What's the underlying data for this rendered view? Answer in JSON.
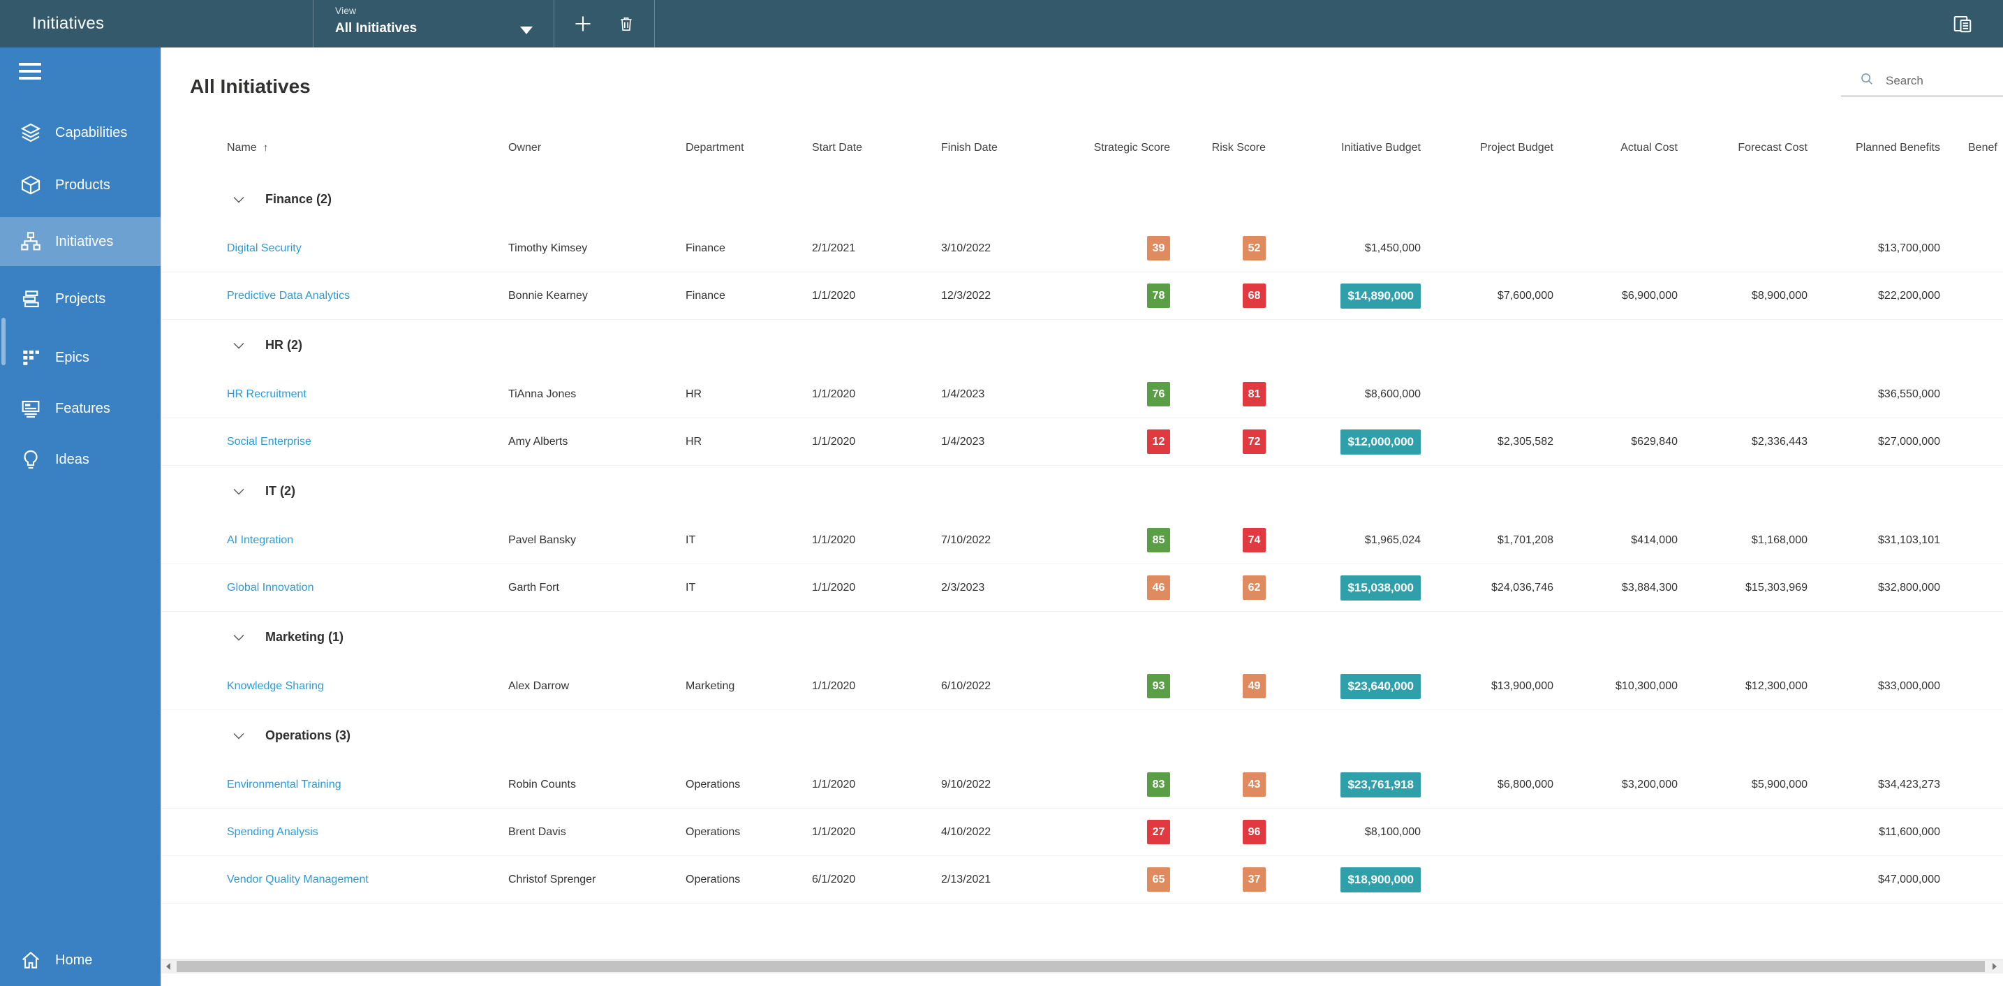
{
  "colors": {
    "topbar_bg": "#34596a",
    "sidebar_bg": "#3a81c3",
    "accent_link": "#2b9cd8",
    "score_green": "#5a9e45",
    "score_red": "#e03a40",
    "score_amber": "#e08b5f",
    "budget_badge": "#2f9faa"
  },
  "topbar": {
    "title": "Initiatives",
    "view_label": "View",
    "view_value": "All Initiatives",
    "actions": [
      {
        "icon": "plus-icon"
      },
      {
        "icon": "trash-icon"
      }
    ],
    "right_icon": "details-panel-icon"
  },
  "sidebar": {
    "menu_icon": "hamburger-icon",
    "items": [
      {
        "label": "Capabilities",
        "icon": "layers-icon",
        "selected": false
      },
      {
        "label": "Products",
        "icon": "box-icon",
        "selected": false
      },
      {
        "label": "Initiatives",
        "icon": "hierarchy-icon",
        "selected": true
      },
      {
        "label": "Projects",
        "icon": "stacked-bars-icon",
        "selected": false
      },
      {
        "label": "Epics",
        "icon": "grid-icon",
        "selected": false
      },
      {
        "label": "Features",
        "icon": "screen-icon",
        "selected": false
      },
      {
        "label": "Ideas",
        "icon": "lightbulb-icon",
        "selected": false
      }
    ],
    "footer_item": {
      "label": "Home",
      "icon": "home-icon"
    }
  },
  "main": {
    "heading": "All Initiatives",
    "search": {
      "placeholder": "Search",
      "icon": "magnifier-icon"
    }
  },
  "table": {
    "columns": [
      {
        "label": "Name",
        "sort": "asc"
      },
      {
        "label": "Owner"
      },
      {
        "label": "Department"
      },
      {
        "label": "Start Date"
      },
      {
        "label": "Finish Date"
      },
      {
        "label": "Strategic Score"
      },
      {
        "label": "Risk Score"
      },
      {
        "label": "Initiative Budget"
      },
      {
        "label": "Project Budget"
      },
      {
        "label": "Actual Cost"
      },
      {
        "label": "Forecast Cost"
      },
      {
        "label": "Planned Benefits"
      },
      {
        "label": "Benef"
      }
    ],
    "groups": [
      {
        "label": "Finance (2)",
        "department": "Finance",
        "count": 2,
        "rows": [
          {
            "name": "Digital Security",
            "owner": "Timothy Kimsey",
            "department": "Finance",
            "start_date": "2/1/2021",
            "finish_date": "3/10/2022",
            "strategic_score": {
              "value": "39",
              "color": "amber"
            },
            "risk_score": {
              "value": "52",
              "color": "amber"
            },
            "initiative_budget": {
              "value": "$1,450,000",
              "highlighted": false
            },
            "project_budget": "",
            "actual_cost": "",
            "forecast_cost": "",
            "planned_benefits": "$13,700,000"
          },
          {
            "name": "Predictive Data Analytics",
            "owner": "Bonnie Kearney",
            "department": "Finance",
            "start_date": "1/1/2020",
            "finish_date": "12/3/2022",
            "strategic_score": {
              "value": "78",
              "color": "green"
            },
            "risk_score": {
              "value": "68",
              "color": "red"
            },
            "initiative_budget": {
              "value": "$14,890,000",
              "highlighted": true
            },
            "project_budget": "$7,600,000",
            "actual_cost": "$6,900,000",
            "forecast_cost": "$8,900,000",
            "planned_benefits": "$22,200,000"
          }
        ]
      },
      {
        "label": "HR (2)",
        "department": "HR",
        "count": 2,
        "rows": [
          {
            "name": "HR Recruitment",
            "owner": "TiAnna Jones",
            "department": "HR",
            "start_date": "1/1/2020",
            "finish_date": "1/4/2023",
            "strategic_score": {
              "value": "76",
              "color": "green"
            },
            "risk_score": {
              "value": "81",
              "color": "red"
            },
            "initiative_budget": {
              "value": "$8,600,000",
              "highlighted": false
            },
            "project_budget": "",
            "actual_cost": "",
            "forecast_cost": "",
            "planned_benefits": "$36,550,000"
          },
          {
            "name": "Social Enterprise",
            "owner": "Amy Alberts",
            "department": "HR",
            "start_date": "1/1/2020",
            "finish_date": "1/4/2023",
            "strategic_score": {
              "value": "12",
              "color": "red"
            },
            "risk_score": {
              "value": "72",
              "color": "red"
            },
            "initiative_budget": {
              "value": "$12,000,000",
              "highlighted": true
            },
            "project_budget": "$2,305,582",
            "actual_cost": "$629,840",
            "forecast_cost": "$2,336,443",
            "planned_benefits": "$27,000,000"
          }
        ]
      },
      {
        "label": "IT (2)",
        "department": "IT",
        "count": 2,
        "rows": [
          {
            "name": "AI Integration",
            "owner": "Pavel Bansky",
            "department": "IT",
            "start_date": "1/1/2020",
            "finish_date": "7/10/2022",
            "strategic_score": {
              "value": "85",
              "color": "green"
            },
            "risk_score": {
              "value": "74",
              "color": "red"
            },
            "initiative_budget": {
              "value": "$1,965,024",
              "highlighted": false
            },
            "project_budget": "$1,701,208",
            "actual_cost": "$414,000",
            "forecast_cost": "$1,168,000",
            "planned_benefits": "$31,103,101"
          },
          {
            "name": "Global Innovation",
            "owner": "Garth Fort",
            "department": "IT",
            "start_date": "1/1/2020",
            "finish_date": "2/3/2023",
            "strategic_score": {
              "value": "46",
              "color": "amber"
            },
            "risk_score": {
              "value": "62",
              "color": "amber"
            },
            "initiative_budget": {
              "value": "$15,038,000",
              "highlighted": true
            },
            "project_budget": "$24,036,746",
            "actual_cost": "$3,884,300",
            "forecast_cost": "$15,303,969",
            "planned_benefits": "$32,800,000"
          }
        ]
      },
      {
        "label": "Marketing (1)",
        "department": "Marketing",
        "count": 1,
        "rows": [
          {
            "name": "Knowledge Sharing",
            "owner": "Alex Darrow",
            "department": "Marketing",
            "start_date": "1/1/2020",
            "finish_date": "6/10/2022",
            "strategic_score": {
              "value": "93",
              "color": "green"
            },
            "risk_score": {
              "value": "49",
              "color": "amber"
            },
            "initiative_budget": {
              "value": "$23,640,000",
              "highlighted": true
            },
            "project_budget": "$13,900,000",
            "actual_cost": "$10,300,000",
            "forecast_cost": "$12,300,000",
            "planned_benefits": "$33,000,000"
          }
        ]
      },
      {
        "label": "Operations (3)",
        "department": "Operations",
        "count": 3,
        "rows": [
          {
            "name": "Environmental Training",
            "owner": "Robin Counts",
            "department": "Operations",
            "start_date": "1/1/2020",
            "finish_date": "9/10/2022",
            "strategic_score": {
              "value": "83",
              "color": "green"
            },
            "risk_score": {
              "value": "43",
              "color": "amber"
            },
            "initiative_budget": {
              "value": "$23,761,918",
              "highlighted": true
            },
            "project_budget": "$6,800,000",
            "actual_cost": "$3,200,000",
            "forecast_cost": "$5,900,000",
            "planned_benefits": "$34,423,273"
          },
          {
            "name": "Spending Analysis",
            "owner": "Brent Davis",
            "department": "Operations",
            "start_date": "1/1/2020",
            "finish_date": "4/10/2022",
            "strategic_score": {
              "value": "27",
              "color": "red"
            },
            "risk_score": {
              "value": "96",
              "color": "red"
            },
            "initiative_budget": {
              "value": "$8,100,000",
              "highlighted": false
            },
            "project_budget": "",
            "actual_cost": "",
            "forecast_cost": "",
            "planned_benefits": "$11,600,000"
          },
          {
            "name": "Vendor Quality Management",
            "owner": "Christof Sprenger",
            "department": "Operations",
            "start_date": "6/1/2020",
            "finish_date": "2/13/2021",
            "strategic_score": {
              "value": "65",
              "color": "amber"
            },
            "risk_score": {
              "value": "37",
              "color": "amber"
            },
            "initiative_budget": {
              "value": "$18,900,000",
              "highlighted": true
            },
            "project_budget": "",
            "actual_cost": "",
            "forecast_cost": "",
            "planned_benefits": "$47,000,000"
          }
        ]
      }
    ]
  }
}
